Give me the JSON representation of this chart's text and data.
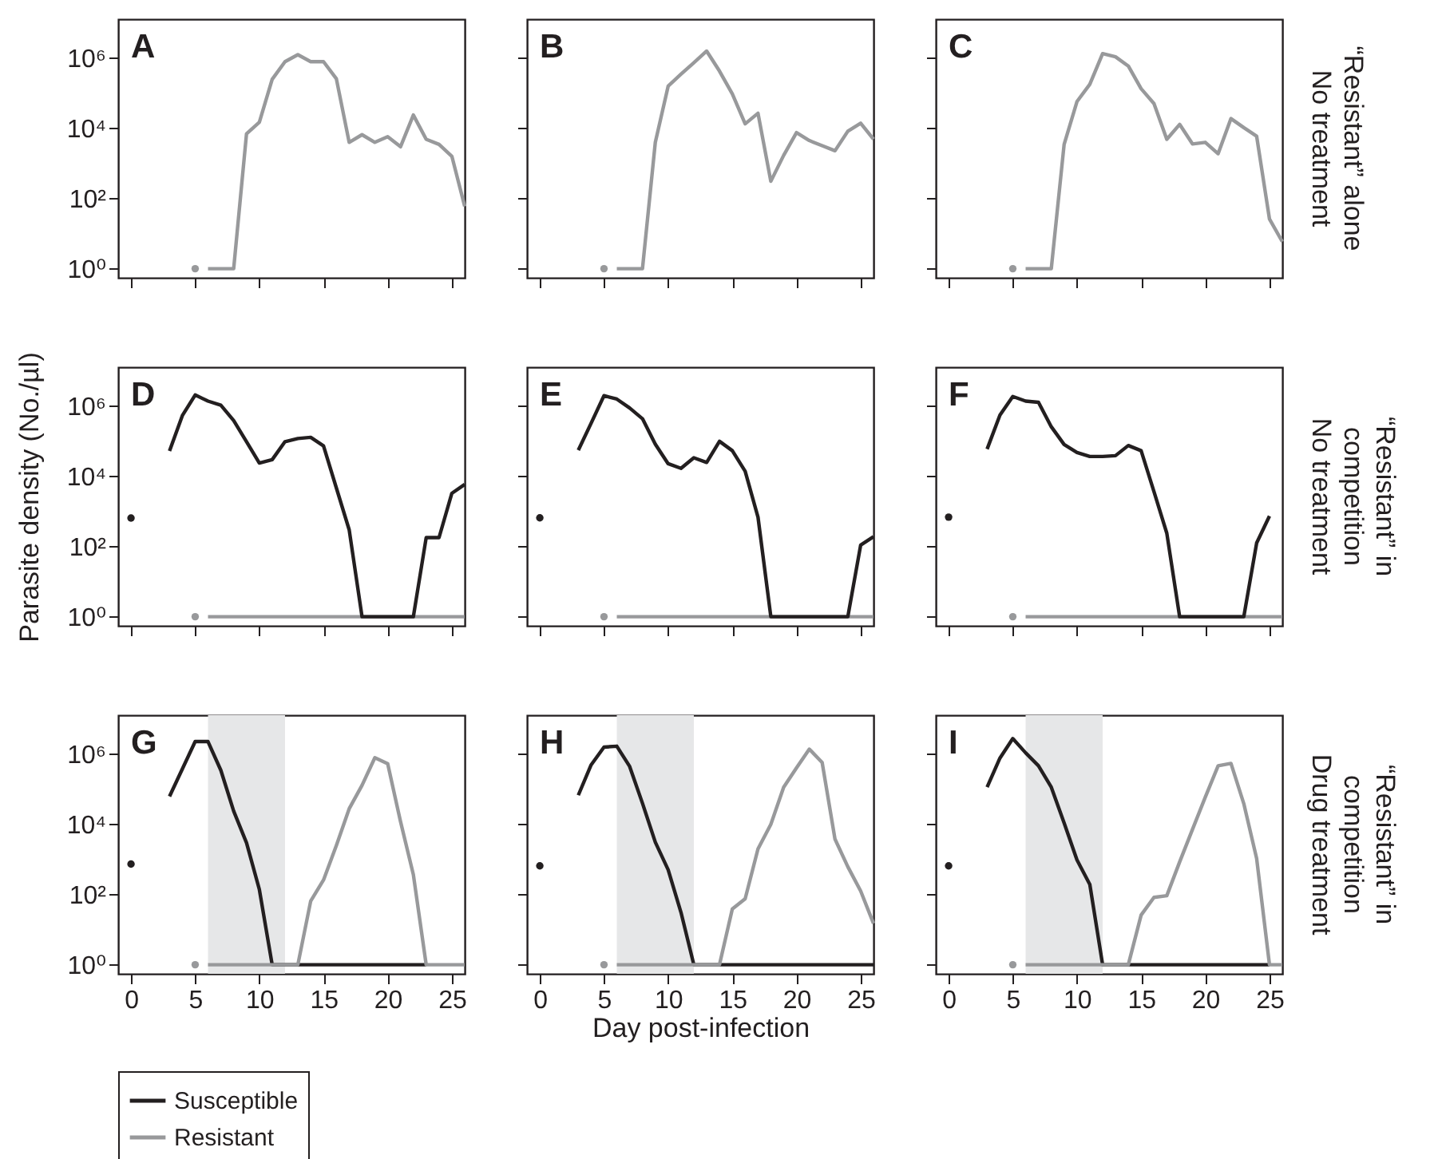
{
  "chart_data": [
    {
      "type": "line",
      "title": "A",
      "xlim": [
        -1,
        26
      ],
      "xticks": [
        0,
        5,
        10,
        15,
        20,
        25
      ],
      "ylim": [
        0.55,
        13000000
      ],
      "yticks": [
        {
          "value": 1,
          "label": "10⁰"
        },
        {
          "value": 100,
          "label": "10²"
        },
        {
          "value": 10000,
          "label": "10⁴"
        },
        {
          "value": 1000000,
          "label": "10⁶"
        }
      ],
      "log": true,
      "tick_labels": "y",
      "series": [
        {
          "type": "scatter",
          "color": "#98999b",
          "x": [
            5
          ],
          "values": [
            1
          ]
        },
        {
          "color": "#98999b",
          "x": [
            6,
            7,
            8,
            9,
            10,
            11,
            12,
            13,
            14,
            15,
            16,
            17,
            18,
            19,
            20,
            21,
            22,
            23,
            24,
            25,
            26
          ],
          "values": [
            1,
            1,
            1,
            7000,
            15000,
            250000,
            800000,
            1260000,
            800000,
            800000,
            260000,
            4000,
            6600,
            4000,
            5800,
            3000,
            24000,
            4900,
            3500,
            1600,
            60
          ]
        }
      ]
    },
    {
      "type": "line",
      "title": "B",
      "xlim": [
        -1,
        26
      ],
      "xticks": [
        0,
        5,
        10,
        15,
        20,
        25
      ],
      "ylim": [
        0.55,
        13000000
      ],
      "yticks": [
        {
          "value": 1,
          "label": null
        },
        {
          "value": 100,
          "label": null
        },
        {
          "value": 10000,
          "label": null
        },
        {
          "value": 1000000,
          "label": null
        }
      ],
      "log": true,
      "tick_labels": false,
      "series": [
        {
          "type": "scatter",
          "color": "#98999b",
          "x": [
            5
          ],
          "values": [
            1
          ]
        },
        {
          "color": "#98999b",
          "x": [
            6,
            7,
            8,
            9,
            10,
            11,
            12,
            13,
            14,
            15,
            16,
            17,
            18,
            19,
            20,
            21,
            22,
            23,
            24,
            25,
            26
          ],
          "values": [
            1,
            1,
            1,
            4000,
            160000,
            350000,
            740000,
            1600000,
            430000,
            96000,
            13500,
            27000,
            310,
            1700,
            7600,
            4500,
            3200,
            2300,
            8300,
            14000,
            4900
          ]
        }
      ]
    },
    {
      "type": "line",
      "title": "C",
      "xlim": [
        -1,
        26
      ],
      "xticks": [
        0,
        5,
        10,
        15,
        20,
        25
      ],
      "ylim": [
        0.55,
        13000000
      ],
      "yticks": [
        {
          "value": 1,
          "label": null
        },
        {
          "value": 100,
          "label": null
        },
        {
          "value": 10000,
          "label": null
        },
        {
          "value": 1000000,
          "label": null
        }
      ],
      "log": true,
      "tick_labels": false,
      "annotations": [
        "“Resistant” alone",
        "No treatment"
      ],
      "series": [
        {
          "type": "scatter",
          "color": "#98999b",
          "x": [
            5
          ],
          "values": [
            1
          ]
        },
        {
          "color": "#98999b",
          "x": [
            6,
            7,
            8,
            9,
            10,
            11,
            12,
            13,
            14,
            15,
            16,
            17,
            18,
            19,
            20,
            21,
            22,
            23,
            24,
            25,
            26
          ],
          "values": [
            1,
            1,
            1,
            3500,
            58000,
            180000,
            1350000,
            1100000,
            600000,
            135000,
            51000,
            4900,
            13000,
            3600,
            4000,
            1900,
            19000,
            10500,
            6000,
            26,
            5.9
          ]
        }
      ]
    },
    {
      "type": "line",
      "title": "D",
      "ylabel": "Parasite density (No./µl)",
      "xlim": [
        -1,
        26
      ],
      "xticks": [
        0,
        5,
        10,
        15,
        20,
        25
      ],
      "ylim": [
        0.55,
        13000000
      ],
      "yticks": [
        {
          "value": 1,
          "label": "10⁰"
        },
        {
          "value": 100,
          "label": "10²"
        },
        {
          "value": 10000,
          "label": "10⁴"
        },
        {
          "value": 1000000,
          "label": "10⁶"
        }
      ],
      "log": true,
      "tick_labels": "y",
      "series": [
        {
          "type": "scatter",
          "color": "#231f20",
          "x": [
            0
          ],
          "values": [
            650
          ]
        },
        {
          "type": "scatter",
          "color": "#98999b",
          "x": [
            5
          ],
          "values": [
            1
          ]
        },
        {
          "color": "#98999b",
          "x": [
            6,
            26
          ],
          "values": [
            1,
            1
          ]
        },
        {
          "color": "#231f20",
          "x": [
            3,
            4,
            5,
            6,
            7,
            8,
            9,
            10,
            11,
            12,
            13,
            14,
            15,
            16,
            17,
            18,
            19,
            20,
            21,
            22,
            23,
            24,
            25,
            26
          ],
          "values": [
            53000,
            540000,
            2100000,
            1400000,
            1070000,
            390000,
            98000,
            24000,
            30000,
            98000,
            120000,
            130000,
            74000,
            4700,
            300,
            1,
            1,
            1,
            1,
            1,
            180,
            180,
            3300,
            5900
          ]
        }
      ]
    },
    {
      "type": "line",
      "title": "E",
      "xlim": [
        -1,
        26
      ],
      "xticks": [
        0,
        5,
        10,
        15,
        20,
        25
      ],
      "ylim": [
        0.55,
        13000000
      ],
      "yticks": [
        {
          "value": 1,
          "label": null
        },
        {
          "value": 100,
          "label": null
        },
        {
          "value": 10000,
          "label": null
        },
        {
          "value": 1000000,
          "label": null
        }
      ],
      "log": true,
      "tick_labels": false,
      "series": [
        {
          "type": "scatter",
          "color": "#231f20",
          "x": [
            0
          ],
          "values": [
            660
          ]
        },
        {
          "type": "scatter",
          "color": "#98999b",
          "x": [
            5
          ],
          "values": [
            1
          ]
        },
        {
          "color": "#98999b",
          "x": [
            6,
            26
          ],
          "values": [
            1,
            1
          ]
        },
        {
          "color": "#231f20",
          "x": [
            3,
            4,
            5,
            6,
            7,
            8,
            9,
            10,
            11,
            12,
            13,
            14,
            15,
            16,
            17,
            18,
            19,
            20,
            21,
            22,
            23,
            24,
            25,
            26
          ],
          "values": [
            56000,
            330000,
            2000000,
            1600000,
            890000,
            440000,
            83000,
            23000,
            17000,
            34000,
            25000,
            100000,
            54000,
            14000,
            690,
            1,
            1,
            1,
            1,
            1,
            1,
            1,
            110,
            190
          ]
        }
      ]
    },
    {
      "type": "line",
      "title": "F",
      "xlim": [
        -1,
        26
      ],
      "xticks": [
        0,
        5,
        10,
        15,
        20,
        25
      ],
      "ylim": [
        0.55,
        13000000
      ],
      "yticks": [
        {
          "value": 1,
          "label": null
        },
        {
          "value": 100,
          "label": null
        },
        {
          "value": 10000,
          "label": null
        },
        {
          "value": 1000000,
          "label": null
        }
      ],
      "log": true,
      "tick_labels": false,
      "annotations": [
        "“Resistant” in",
        "competition",
        "No treatment"
      ],
      "series": [
        {
          "type": "scatter",
          "color": "#231f20",
          "x": [
            0
          ],
          "values": [
            690
          ]
        },
        {
          "type": "scatter",
          "color": "#98999b",
          "x": [
            5
          ],
          "values": [
            1
          ]
        },
        {
          "color": "#98999b",
          "x": [
            6,
            26
          ],
          "values": [
            1,
            1
          ]
        },
        {
          "color": "#231f20",
          "x": [
            3,
            4,
            5,
            6,
            7,
            8,
            9,
            10,
            11,
            12,
            13,
            14,
            15,
            16,
            17,
            18,
            19,
            20,
            21,
            22,
            23,
            24,
            25
          ],
          "values": [
            60000,
            560000,
            1900000,
            1400000,
            1300000,
            260000,
            81000,
            48000,
            37000,
            37000,
            39000,
            76000,
            54000,
            3700,
            240,
            1,
            1,
            1,
            1,
            1,
            1,
            126,
            740
          ]
        }
      ]
    },
    {
      "type": "line",
      "title": "G",
      "xlim": [
        -1,
        26
      ],
      "xticks": [
        0,
        5,
        10,
        15,
        20,
        25
      ],
      "ylim": [
        0.55,
        13000000
      ],
      "yticks": [
        {
          "value": 1,
          "label": "10⁰"
        },
        {
          "value": 100,
          "label": "10²"
        },
        {
          "value": 10000,
          "label": "10⁴"
        },
        {
          "value": 1000000,
          "label": "10⁶"
        }
      ],
      "log": true,
      "legend": "bottom",
      "bands": [
        {
          "axis": "x",
          "from": 6,
          "to": 12,
          "color": "#e6e7e8"
        }
      ],
      "series": [
        {
          "type": "scatter",
          "color": "#231f20",
          "x": [
            0
          ],
          "values": [
            740
          ]
        },
        {
          "type": "scatter",
          "color": "#98999b",
          "x": [
            5
          ],
          "values": [
            1
          ]
        },
        {
          "name": "Susceptible",
          "color": "#231f20",
          "x": [
            3,
            5,
            6,
            7,
            8,
            9,
            10,
            11,
            23
          ],
          "values": [
            63000,
            2300000,
            2300000,
            350000,
            24000,
            3000,
            140,
            1,
            1
          ]
        },
        {
          "name": "Resistant",
          "color": "#98999b",
          "x": [
            6,
            13,
            14,
            15,
            16,
            17,
            18,
            19,
            20,
            21,
            22,
            23,
            26
          ],
          "values": [
            1,
            1,
            65,
            260,
            2500,
            28000,
            130000,
            800000,
            540000,
            12000,
            370,
            1,
            1
          ]
        }
      ]
    },
    {
      "type": "line",
      "title": "H",
      "xlabel": "Day post-infection",
      "xlim": [
        -1,
        26
      ],
      "xticks": [
        0,
        5,
        10,
        15,
        20,
        25
      ],
      "ylim": [
        0.55,
        13000000
      ],
      "yticks": [
        {
          "value": 1,
          "label": null
        },
        {
          "value": 100,
          "label": null
        },
        {
          "value": 10000,
          "label": null
        },
        {
          "value": 1000000,
          "label": null
        }
      ],
      "log": true,
      "tick_labels": "x",
      "bands": [
        {
          "axis": "x",
          "from": 6,
          "to": 12,
          "color": "#e6e7e8"
        }
      ],
      "series": [
        {
          "type": "scatter",
          "color": "#231f20",
          "x": [
            0
          ],
          "values": [
            660
          ]
        },
        {
          "type": "scatter",
          "color": "#98999b",
          "x": [
            5
          ],
          "values": [
            1
          ]
        },
        {
          "color": "#231f20",
          "x": [
            3,
            4,
            5,
            6,
            7,
            8,
            9,
            10,
            11,
            12,
            26
          ],
          "values": [
            68000,
            500000,
            1600000,
            1700000,
            450000,
            40000,
            3100,
            510,
            31,
            1,
            1
          ]
        },
        {
          "color": "#98999b",
          "x": [
            6,
            14,
            15,
            16,
            17,
            18,
            19,
            20,
            21,
            22,
            23,
            24,
            25,
            26
          ],
          "values": [
            1,
            1,
            39,
            76,
            2000,
            10000,
            115000,
            410000,
            1400000,
            580000,
            3800,
            620,
            126,
            15
          ]
        }
      ]
    },
    {
      "type": "line",
      "title": "I",
      "xlim": [
        -1,
        26
      ],
      "xticks": [
        0,
        5,
        10,
        15,
        20,
        25
      ],
      "ylim": [
        0.55,
        13000000
      ],
      "yticks": [
        {
          "value": 1,
          "label": null
        },
        {
          "value": 100,
          "label": null
        },
        {
          "value": 10000,
          "label": null
        },
        {
          "value": 1000000,
          "label": null
        }
      ],
      "log": true,
      "tick_labels": "x",
      "annotations": [
        "“Resistant” in",
        "competition",
        "Drug treatment"
      ],
      "bands": [
        {
          "axis": "x",
          "from": 6,
          "to": 12,
          "color": "#e6e7e8"
        }
      ],
      "series": [
        {
          "type": "scatter",
          "color": "#231f20",
          "x": [
            0
          ],
          "values": [
            660
          ]
        },
        {
          "type": "scatter",
          "color": "#98999b",
          "x": [
            5
          ],
          "values": [
            1
          ]
        },
        {
          "color": "#231f20",
          "x": [
            3,
            4,
            5,
            6,
            7,
            8,
            9,
            10,
            11,
            12,
            25
          ],
          "values": [
            115000,
            780000,
            2800000,
            1100000,
            470000,
            115000,
            11000,
            980,
            195,
            1,
            1
          ]
        },
        {
          "color": "#98999b",
          "x": [
            6,
            14,
            15,
            16,
            17,
            18,
            19,
            20,
            21,
            22,
            23,
            24,
            25,
            26
          ],
          "values": [
            1,
            1,
            26,
            83,
            93,
            850,
            7200,
            60000,
            470000,
            550000,
            39000,
            1070,
            1,
            1
          ]
        }
      ]
    }
  ]
}
